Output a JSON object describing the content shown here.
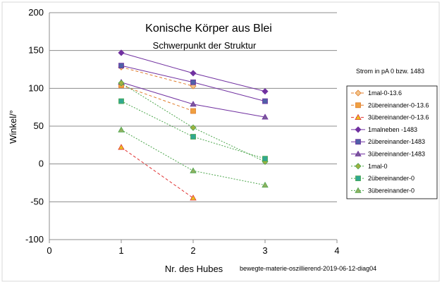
{
  "chart_data": {
    "type": "line",
    "title": "Konische Körper aus Blei",
    "subtitle": "Schwerpunkt der Struktur",
    "xlabel": "Nr. des Hubes",
    "ylabel": "Winkel/°",
    "xlim": [
      0,
      4
    ],
    "ylim": [
      -100,
      200
    ],
    "xticks": [
      "0",
      "1",
      "2",
      "3",
      "4"
    ],
    "yticks": [
      "200",
      "150",
      "100",
      "50",
      "0",
      "-50",
      "-100"
    ],
    "grid": "horizontal",
    "legend_position": "right",
    "note": "Strom in pA  0 bzw. 1483",
    "footnote": "bewegte-materie-oszillierend-2019-06-12-diag04",
    "series": [
      {
        "name": "1mal-0-13.6",
        "x": [
          1,
          2
        ],
        "values": [
          128,
          103
        ],
        "color": "#e07b2a",
        "marker": "diamond",
        "dash": "dashed"
      },
      {
        "name": "2übereinander-0-13.6",
        "x": [
          1,
          2
        ],
        "values": [
          104,
          70
        ],
        "color": "#e07b2a",
        "marker": "square",
        "dash": "dashed"
      },
      {
        "name": "3übereinander-0-13.6",
        "x": [
          1,
          2
        ],
        "values": [
          22,
          -45
        ],
        "color": "#e03030",
        "marker": "triangle",
        "dash": "dashed"
      },
      {
        "name": "1malneben -1483",
        "x": [
          1,
          2,
          3
        ],
        "values": [
          147,
          120,
          96
        ],
        "color": "#7030a0",
        "marker": "diamond",
        "dash": "solid"
      },
      {
        "name": "2übereinander-1483",
        "x": [
          1,
          2,
          3
        ],
        "values": [
          130,
          108,
          83
        ],
        "color": "#7030a0",
        "marker": "square",
        "dash": "solid"
      },
      {
        "name": "3übereinander-1483",
        "x": [
          1,
          2,
          3
        ],
        "values": [
          108,
          79,
          62
        ],
        "color": "#7030a0",
        "marker": "triangle",
        "dash": "solid"
      },
      {
        "name": "1mal-0",
        "x": [
          1,
          2,
          3
        ],
        "values": [
          107,
          48,
          3
        ],
        "color": "#4ca64c",
        "marker": "diamond",
        "dash": "dotted"
      },
      {
        "name": "2übereinander-0",
        "x": [
          1,
          2,
          3
        ],
        "values": [
          83,
          36,
          7
        ],
        "color": "#4ca64c",
        "marker": "square",
        "dash": "dotted"
      },
      {
        "name": "3übereinander-0",
        "x": [
          1,
          2,
          3
        ],
        "values": [
          45,
          -9,
          -28
        ],
        "color": "#4ca64c",
        "marker": "triangle",
        "dash": "dotted"
      }
    ],
    "marker_fill": {
      "1mal-0-13.6": "#f2c48a",
      "2übereinander-0-13.6": "#f0a040",
      "3übereinander-0-13.6": "#e8c020",
      "1malneben -1483": "#7030a0",
      "2übereinander-1483": "#5060a8",
      "3übereinander-1483": "#7a5a9a",
      "1mal-0": "#a0b040",
      "2übereinander-0": "#30a890",
      "3übereinander-0": "#90b060"
    }
  }
}
